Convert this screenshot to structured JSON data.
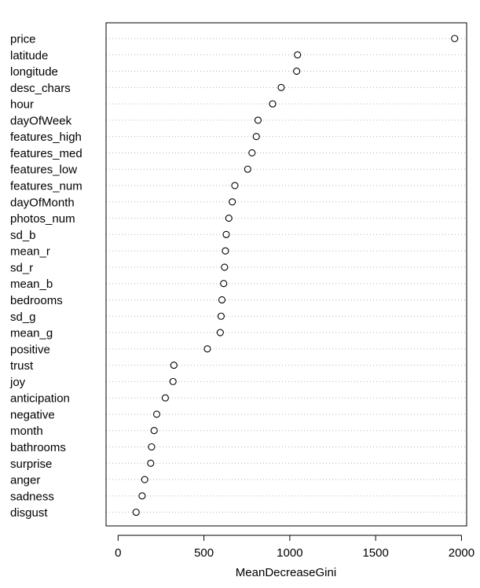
{
  "chart_data": {
    "type": "scatter",
    "subtype": "dotchart",
    "xlabel": "MeanDecreaseGini",
    "ylabel": "",
    "title": "",
    "xlim": [
      -70,
      2030
    ],
    "xticks": [
      0,
      500,
      1000,
      1500,
      2000
    ],
    "xtick_labels": [
      "0",
      "500",
      "1000",
      "1500",
      "2000"
    ],
    "grid": "dotted horizontal guides",
    "points": [
      {
        "label": "price",
        "value": 1960
      },
      {
        "label": "latitude",
        "value": 1045
      },
      {
        "label": "longitude",
        "value": 1040
      },
      {
        "label": "desc_chars",
        "value": 950
      },
      {
        "label": "hour",
        "value": 900
      },
      {
        "label": "dayOfWeek",
        "value": 815
      },
      {
        "label": "features_high",
        "value": 805
      },
      {
        "label": "features_med",
        "value": 780
      },
      {
        "label": "features_low",
        "value": 755
      },
      {
        "label": "features_num",
        "value": 680
      },
      {
        "label": "dayOfMonth",
        "value": 665
      },
      {
        "label": "photos_num",
        "value": 645
      },
      {
        "label": "sd_b",
        "value": 630
      },
      {
        "label": "mean_r",
        "value": 625
      },
      {
        "label": "sd_r",
        "value": 620
      },
      {
        "label": "mean_b",
        "value": 615
      },
      {
        "label": "bedrooms",
        "value": 605
      },
      {
        "label": "sd_g",
        "value": 600
      },
      {
        "label": "mean_g",
        "value": 595
      },
      {
        "label": "positive",
        "value": 520
      },
      {
        "label": "trust",
        "value": 325
      },
      {
        "label": "joy",
        "value": 320
      },
      {
        "label": "anticipation",
        "value": 275
      },
      {
        "label": "negative",
        "value": 225
      },
      {
        "label": "month",
        "value": 210
      },
      {
        "label": "bathrooms",
        "value": 195
      },
      {
        "label": "surprise",
        "value": 190
      },
      {
        "label": "anger",
        "value": 155
      },
      {
        "label": "sadness",
        "value": 140
      },
      {
        "label": "disgust",
        "value": 105
      }
    ]
  }
}
